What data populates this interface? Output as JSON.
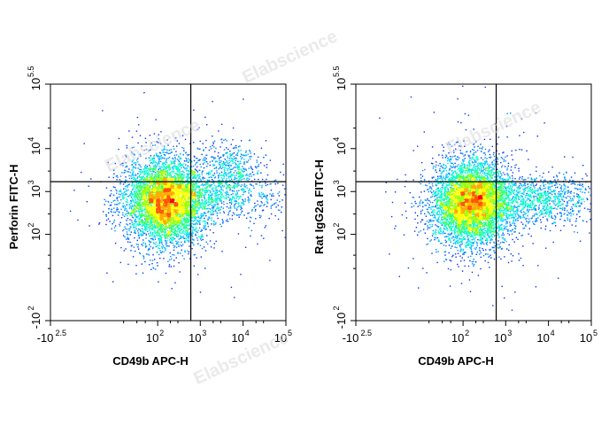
{
  "watermark": "Elabscience",
  "chart_data": [
    {
      "type": "scatter",
      "subtype": "flow-cytometry-density-dot-plot",
      "title": "",
      "xlabel": "CD49b APC-H",
      "ylabel": "Perforin FITC-H",
      "x_scale": "biexponential",
      "y_scale": "biexponential",
      "x_ticks": [
        {
          "base": "-10",
          "exp": "2.5"
        },
        {
          "base": "10",
          "exp": "2"
        },
        {
          "base": "10",
          "exp": "3"
        },
        {
          "base": "10",
          "exp": "4"
        },
        {
          "base": "10",
          "exp": "5"
        }
      ],
      "y_ticks": [
        {
          "base": "-10",
          "exp": "2"
        },
        {
          "base": "10",
          "exp": "2"
        },
        {
          "base": "10",
          "exp": "3"
        },
        {
          "base": "10",
          "exp": "4"
        },
        {
          "base": "10",
          "exp": "5.5"
        }
      ],
      "gate": {
        "x": 600,
        "y": 1700
      },
      "populations": [
        {
          "label": "CD49b- Perforin-",
          "center_x": 150,
          "center_y": 600,
          "relative_size": 0.8
        },
        {
          "label": "CD49b+ Perforin+",
          "center_x": 5000,
          "center_y": 3000,
          "relative_size": 0.08
        },
        {
          "label": "CD49b+ Perforin-",
          "center_x": 2000,
          "center_y": 700,
          "relative_size": 0.12
        }
      ],
      "grid": false,
      "legend": "none",
      "colormap": [
        "#0000ff",
        "#00ccff",
        "#00ff66",
        "#ffff00",
        "#ff8800",
        "#ff0000"
      ]
    },
    {
      "type": "scatter",
      "subtype": "flow-cytometry-density-dot-plot",
      "title": "",
      "xlabel": "CD49b APC-H",
      "ylabel": "Rat IgG2a FITC-H",
      "x_scale": "biexponential",
      "y_scale": "biexponential",
      "x_ticks": [
        {
          "base": "-10",
          "exp": "2.5"
        },
        {
          "base": "10",
          "exp": "2"
        },
        {
          "base": "10",
          "exp": "3"
        },
        {
          "base": "10",
          "exp": "4"
        },
        {
          "base": "10",
          "exp": "5"
        }
      ],
      "y_ticks": [
        {
          "base": "-10",
          "exp": "2"
        },
        {
          "base": "10",
          "exp": "2"
        },
        {
          "base": "10",
          "exp": "3"
        },
        {
          "base": "10",
          "exp": "4"
        },
        {
          "base": "10",
          "exp": "5.5"
        }
      ],
      "gate": {
        "x": 600,
        "y": 1700
      },
      "populations": [
        {
          "label": "CD49b- isotype",
          "center_x": 150,
          "center_y": 550,
          "relative_size": 0.78
        },
        {
          "label": "CD49b+ isotype",
          "center_x": 3500,
          "center_y": 650,
          "relative_size": 0.22
        }
      ],
      "grid": false,
      "legend": "none",
      "colormap": [
        "#0000ff",
        "#00ccff",
        "#00ff66",
        "#ffff00",
        "#ff8800",
        "#ff0000"
      ]
    }
  ]
}
